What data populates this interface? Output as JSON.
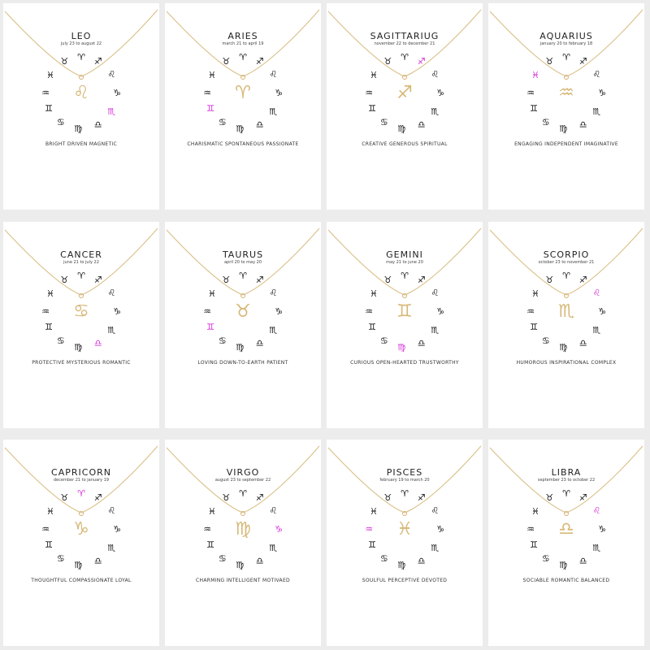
{
  "accent_colors": {
    "gold": "#d7b878",
    "highlight": "#d42ad6",
    "background": "#ececec"
  },
  "cards": [
    {
      "title": "LEO",
      "dates": "july 23 to august 22",
      "traits": "BRIGHT DRIVEN MAGNETIC",
      "symbol": "♌",
      "highlight_index": 5
    },
    {
      "title": "ARIES",
      "dates": "march 21 to april 19",
      "traits": "CHARISMATIC SPONTANEOUS PASSIONATE",
      "symbol": "♈",
      "highlight_index": 9
    },
    {
      "title": "SAGITTARIUG",
      "dates": "november 22 to december 21",
      "traits": "CREATIVE GENEROUS SPIRITUAL",
      "symbol": "♐",
      "highlight_index": 2
    },
    {
      "title": "AQUARIUS",
      "dates": "january 20 to february 18",
      "traits": "ENGAGING INDEPENDENT IMAGINATIVE",
      "symbol": "♒",
      "highlight_index": 11
    },
    {
      "title": "CANCER",
      "dates": "june 21 to july 22",
      "traits": "PROTECTIVE MYSTERIOUS ROMANTIC",
      "symbol": "♋",
      "highlight_index": 6
    },
    {
      "title": "TAURUS",
      "dates": "april 20 to may 20",
      "traits": "LOVING DOWN-TO-EARTH PATIENT",
      "symbol": "♉",
      "highlight_index": 9
    },
    {
      "title": "GEMINI",
      "dates": "may 21 to june 20",
      "traits": "CURIOUS OPEN-HEARTED TRUSTWORTHY",
      "symbol": "♊",
      "highlight_index": 7
    },
    {
      "title": "SCORPIO",
      "dates": "october 23 to november 21",
      "traits": "HUMOROUS INSPIRATIONAL COMPLEX",
      "symbol": "♏",
      "highlight_index": 3
    },
    {
      "title": "CAPRICORN",
      "dates": "december 21 to january 19",
      "traits": "THOUGHTFUL COMPASSIONATE LOYAL",
      "symbol": "♑",
      "highlight_index": 1
    },
    {
      "title": "VIRGO",
      "dates": "august 23 to september 22",
      "traits": "CHARMING INTELLIGENT MOTIVAED",
      "symbol": "♍",
      "highlight_index": 4
    },
    {
      "title": "PISCES",
      "dates": "february 19 to march 20",
      "traits": "SOULFUL PERCEPTIVE DEVOTED",
      "symbol": "♓",
      "highlight_index": 10
    },
    {
      "title": "LIBRA",
      "dates": "september 23 to october 22",
      "traits": "SOCIABLE ROMANTIC BALANCED",
      "symbol": "♎",
      "highlight_index": 3
    }
  ],
  "ring_glyphs": [
    "♉",
    "♈",
    "♐",
    "♌",
    "♑",
    "♏",
    "♎",
    "♍",
    "♋",
    "♊",
    "♒",
    "♓"
  ]
}
